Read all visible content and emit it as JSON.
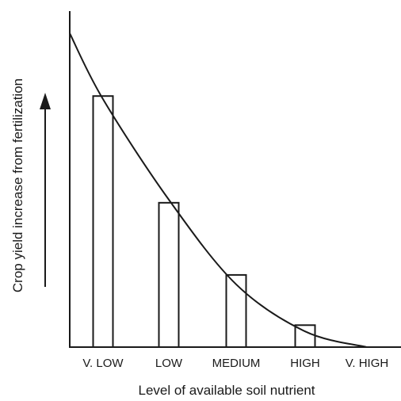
{
  "chart_data": {
    "type": "bar",
    "categories": [
      "V. LOW",
      "LOW",
      "MEDIUM",
      "HIGH",
      "V. HIGH"
    ],
    "values": [
      80,
      46,
      23,
      7,
      0
    ],
    "trend_curve": [
      {
        "x": "V. LOW",
        "y": 79
      },
      {
        "x": "LOW",
        "y": 47
      },
      {
        "x": "MEDIUM",
        "y": 20
      },
      {
        "x": "HIGH",
        "y": 5
      },
      {
        "x": "V. HIGH",
        "y": 0
      }
    ],
    "curve_start_y": 100,
    "xlabel": "Level of available soil nutrient",
    "ylabel": "Crop yield increase from fertilization",
    "ylim": [
      0,
      100
    ],
    "y_ticks": false,
    "grid": false,
    "legend": "none",
    "ylabel_arrow": "up",
    "bar_fill": "#ffffff",
    "stroke_color": "#1a1a1a"
  }
}
